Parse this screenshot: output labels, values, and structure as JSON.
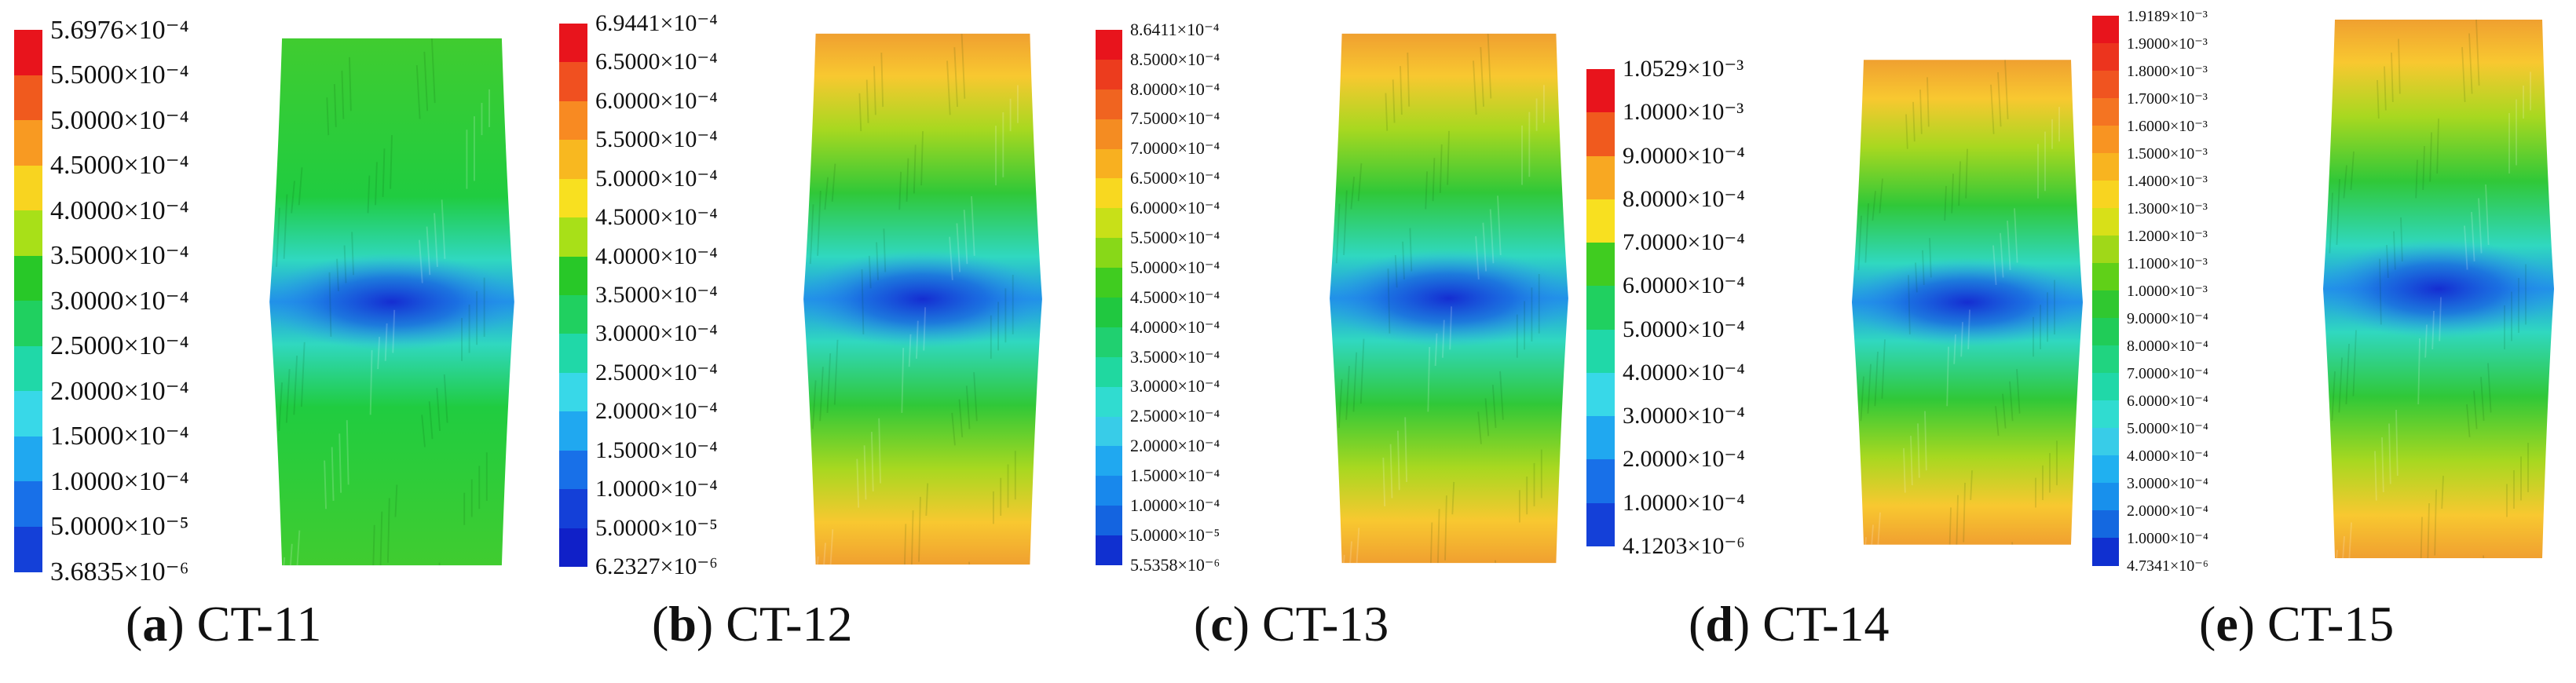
{
  "figure": {
    "panels": [
      {
        "letter": "a",
        "name": "CT-11",
        "labels": [
          "5.6976×10⁻⁴",
          "5.5000×10⁻⁴",
          "5.0000×10⁻⁴",
          "4.5000×10⁻⁴",
          "4.0000×10⁻⁴",
          "3.5000×10⁻⁴",
          "3.0000×10⁻⁴",
          "2.5000×10⁻⁴",
          "2.0000×10⁻⁴",
          "1.5000×10⁻⁴",
          "1.0000×10⁻⁴",
          "5.0000×10⁻⁵",
          "3.6835×10⁻⁶"
        ],
        "colors": [
          "#e8141c",
          "#f05a1e",
          "#f89a22",
          "#f8d420",
          "#a8e018",
          "#28c828",
          "#20d060",
          "#20d8a8",
          "#38d8e8",
          "#20a8f0",
          "#1870e8",
          "#1440d8"
        ]
      },
      {
        "letter": "b",
        "name": "CT-12",
        "labels": [
          "6.9441×10⁻⁴",
          "6.5000×10⁻⁴",
          "6.0000×10⁻⁴",
          "5.5000×10⁻⁴",
          "5.0000×10⁻⁴",
          "4.5000×10⁻⁴",
          "4.0000×10⁻⁴",
          "3.5000×10⁻⁴",
          "3.0000×10⁻⁴",
          "2.5000×10⁻⁴",
          "2.0000×10⁻⁴",
          "1.5000×10⁻⁴",
          "1.0000×10⁻⁴",
          "5.0000×10⁻⁵",
          "6.2327×10⁻⁶"
        ],
        "colors": [
          "#e8141c",
          "#f05020",
          "#f88a22",
          "#f8b820",
          "#f8e020",
          "#a8e018",
          "#28c828",
          "#20d060",
          "#20d8a8",
          "#38d8e8",
          "#20a8f0",
          "#1870e8",
          "#1440d8",
          "#1020c8"
        ]
      },
      {
        "letter": "c",
        "name": "CT-13",
        "labels": [
          "8.6411×10⁻⁴",
          "8.5000×10⁻⁴",
          "8.0000×10⁻⁴",
          "7.5000×10⁻⁴",
          "7.0000×10⁻⁴",
          "6.5000×10⁻⁴",
          "6.0000×10⁻⁴",
          "5.5000×10⁻⁴",
          "5.0000×10⁻⁴",
          "4.5000×10⁻⁴",
          "4.0000×10⁻⁴",
          "3.5000×10⁻⁴",
          "3.0000×10⁻⁴",
          "2.5000×10⁻⁴",
          "2.0000×10⁻⁴",
          "1.5000×10⁻⁴",
          "1.0000×10⁻⁴",
          "5.0000×10⁻⁵",
          "5.5358×10⁻⁶"
        ],
        "colors": [
          "#e8141c",
          "#ec3c1e",
          "#f06420",
          "#f48c22",
          "#f8b020",
          "#f8d820",
          "#c8e018",
          "#88d818",
          "#40cc20",
          "#20c840",
          "#20d070",
          "#20d8a0",
          "#30dcd0",
          "#38cce8",
          "#20a8f0",
          "#1888ec",
          "#1464e0",
          "#1030d0"
        ]
      },
      {
        "letter": "d",
        "name": "CT-14",
        "labels": [
          "1.0529×10⁻³",
          "1.0000×10⁻³",
          "9.0000×10⁻⁴",
          "8.0000×10⁻⁴",
          "7.0000×10⁻⁴",
          "6.0000×10⁻⁴",
          "5.0000×10⁻⁴",
          "4.0000×10⁻⁴",
          "3.0000×10⁻⁴",
          "2.0000×10⁻⁴",
          "1.0000×10⁻⁴",
          "4.1203×10⁻⁶"
        ],
        "colors": [
          "#e8141c",
          "#f05a1e",
          "#f8a822",
          "#f8e020",
          "#40cc20",
          "#20d060",
          "#20d8a8",
          "#38d8e8",
          "#20a8f0",
          "#1870e8",
          "#1440d8"
        ]
      },
      {
        "letter": "e",
        "name": "CT-15",
        "labels": [
          "1.9189×10⁻³",
          "1.9000×10⁻³",
          "1.8000×10⁻³",
          "1.7000×10⁻³",
          "1.6000×10⁻³",
          "1.5000×10⁻³",
          "1.4000×10⁻³",
          "1.3000×10⁻³",
          "1.2000×10⁻³",
          "1.1000×10⁻³",
          "1.0000×10⁻³",
          "9.0000×10⁻⁴",
          "8.0000×10⁻⁴",
          "7.0000×10⁻⁴",
          "6.0000×10⁻⁴",
          "5.0000×10⁻⁴",
          "4.0000×10⁻⁴",
          "3.0000×10⁻⁴",
          "2.0000×10⁻⁴",
          "1.0000×10⁻⁴",
          "4.7341×10⁻⁶"
        ],
        "colors": [
          "#e8141c",
          "#ec341e",
          "#f05420",
          "#f47422",
          "#f89422",
          "#f8b420",
          "#f8d420",
          "#d8e018",
          "#a0d818",
          "#60d018",
          "#30c830",
          "#20cc58",
          "#20d480",
          "#20d8a8",
          "#30dcd0",
          "#38cce8",
          "#20b0f0",
          "#1890ec",
          "#1468e0",
          "#1030d0"
        ]
      }
    ]
  }
}
